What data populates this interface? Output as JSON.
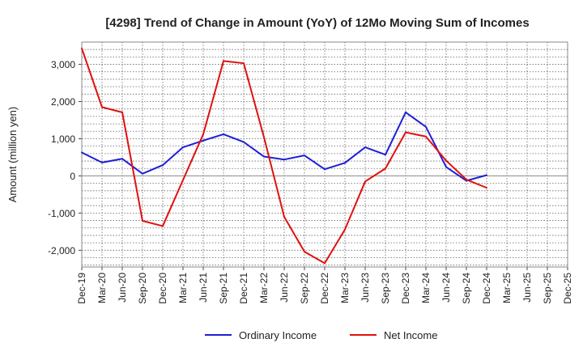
{
  "chart_data": {
    "type": "line",
    "title": "[4298]  Trend of Change in Amount (YoY) of 12Mo Moving Sum of Incomes",
    "xlabel": "",
    "ylabel": "Amount (million yen)",
    "ylim": [
      -2450,
      3600
    ],
    "yticks": [
      -2000,
      -1000,
      0,
      1000,
      2000,
      3000
    ],
    "ytick_labels": [
      "-2,000",
      "-1,000",
      "0",
      "1,000",
      "2,000",
      "3,000"
    ],
    "categories": [
      "Dec-19",
      "Mar-20",
      "Jun-20",
      "Sep-20",
      "Dec-20",
      "Mar-21",
      "Jun-21",
      "Sep-21",
      "Dec-21",
      "Mar-22",
      "Jun-22",
      "Sep-22",
      "Dec-22",
      "Mar-23",
      "Jun-23",
      "Sep-23",
      "Dec-23",
      "Mar-24",
      "Jun-24",
      "Sep-24",
      "Dec-24",
      "Mar-25"
    ],
    "xtick_labels": [
      "Dec-19",
      "Mar-20",
      "Jun-20",
      "Sep-20",
      "Dec-20",
      "Mar-21",
      "Jun-21",
      "Sep-21",
      "Dec-21",
      "Mar-22",
      "Jun-22",
      "Sep-22",
      "Dec-22",
      "Mar-23",
      "Jun-23",
      "Sep-23",
      "Dec-23",
      "Mar-24",
      "Jun-24",
      "Sep-24",
      "Dec-24",
      "Mar-25",
      "Jun-25",
      "Sep-25",
      "Dec-25"
    ],
    "grid": true,
    "legend_position": "bottom",
    "series": [
      {
        "name": "Ordinary Income",
        "color": "#1f1fd6",
        "values": [
          630,
          360,
          460,
          60,
          290,
          770,
          950,
          1120,
          910,
          520,
          440,
          550,
          180,
          350,
          770,
          570,
          1710,
          1320,
          240,
          -130,
          20,
          null
        ]
      },
      {
        "name": "Net Income",
        "color": "#e01010",
        "values": [
          3430,
          1850,
          1710,
          -1210,
          -1350,
          -110,
          1120,
          3090,
          3030,
          1040,
          -1100,
          -2040,
          -2350,
          -1440,
          -150,
          200,
          1170,
          1060,
          410,
          -100,
          -320,
          null
        ]
      }
    ]
  }
}
